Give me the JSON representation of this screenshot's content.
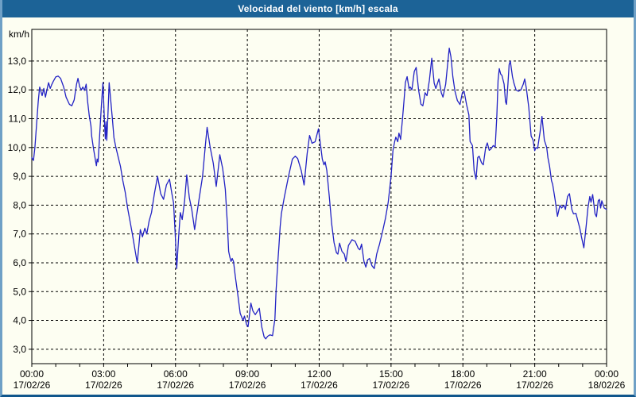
{
  "window": {
    "title": "Velocidad del viento [km/h] escala"
  },
  "colors": {
    "title_bar": "#1c6397",
    "border_sides": "#6fa0c6",
    "border_bottom": "#10568c",
    "background": "#fdfef2"
  },
  "chart_data": {
    "type": "line",
    "title": "Velocidad del viento [km/h] escala",
    "xlabel": "",
    "ylabel": "km/h",
    "xlim": [
      0,
      24
    ],
    "ylim": [
      2.5,
      14.1
    ],
    "grid": "dashed",
    "x_minor_step": 1,
    "line_color": "#2222c4",
    "grid_color": "#000000",
    "axis_color": "#000000",
    "y_ticks": [
      {
        "value": 13,
        "label": "13,0"
      },
      {
        "value": 12,
        "label": "12,0"
      },
      {
        "value": 11,
        "label": "11,0"
      },
      {
        "value": 10,
        "label": "10,0"
      },
      {
        "value": 9,
        "label": "9,0"
      },
      {
        "value": 8,
        "label": "8,0"
      },
      {
        "value": 7,
        "label": "7,0"
      },
      {
        "value": 6,
        "label": "6,0"
      },
      {
        "value": 5,
        "label": "5,0"
      },
      {
        "value": 4,
        "label": "4,0"
      },
      {
        "value": 3,
        "label": "3,0"
      }
    ],
    "x_ticks": [
      {
        "hour": 0,
        "time": "00:00",
        "date": "17/02/26"
      },
      {
        "hour": 3,
        "time": "03:00",
        "date": "17/02/26"
      },
      {
        "hour": 6,
        "time": "06:00",
        "date": "17/02/26"
      },
      {
        "hour": 9,
        "time": "09:00",
        "date": "17/02/26"
      },
      {
        "hour": 12,
        "time": "12:00",
        "date": "17/02/26"
      },
      {
        "hour": 15,
        "time": "15:00",
        "date": "17/02/26"
      },
      {
        "hour": 18,
        "time": "18:00",
        "date": "17/02/26"
      },
      {
        "hour": 21,
        "time": "21:00",
        "date": "17/02/26"
      },
      {
        "hour": 24,
        "time": "00:00",
        "date": "18/02/26"
      }
    ],
    "points": [
      [
        0.0,
        9.65
      ],
      [
        0.07,
        9.55
      ],
      [
        0.13,
        10.0
      ],
      [
        0.2,
        10.8
      ],
      [
        0.27,
        11.6
      ],
      [
        0.33,
        12.1
      ],
      [
        0.43,
        11.8
      ],
      [
        0.5,
        12.05
      ],
      [
        0.57,
        11.75
      ],
      [
        0.63,
        12.0
      ],
      [
        0.7,
        12.25
      ],
      [
        0.77,
        12.05
      ],
      [
        0.83,
        12.18
      ],
      [
        0.9,
        12.3
      ],
      [
        1.0,
        12.45
      ],
      [
        1.1,
        12.48
      ],
      [
        1.2,
        12.4
      ],
      [
        1.33,
        12.1
      ],
      [
        1.43,
        11.75
      ],
      [
        1.57,
        11.5
      ],
      [
        1.67,
        11.45
      ],
      [
        1.77,
        11.65
      ],
      [
        1.87,
        12.2
      ],
      [
        1.93,
        12.4
      ],
      [
        2.0,
        12.1
      ],
      [
        2.07,
        12.0
      ],
      [
        2.13,
        12.1
      ],
      [
        2.2,
        11.98
      ],
      [
        2.27,
        12.2
      ],
      [
        2.33,
        11.6
      ],
      [
        2.4,
        11.1
      ],
      [
        2.47,
        10.75
      ],
      [
        2.5,
        10.4
      ],
      [
        2.57,
        10.0
      ],
      [
        2.63,
        9.7
      ],
      [
        2.67,
        9.5
      ],
      [
        2.7,
        9.37
      ],
      [
        2.73,
        9.6
      ],
      [
        2.77,
        9.5
      ],
      [
        2.83,
        10.4
      ],
      [
        2.9,
        11.4
      ],
      [
        2.97,
        12.25
      ],
      [
        3.03,
        10.95
      ],
      [
        3.07,
        10.3
      ],
      [
        3.1,
        10.9
      ],
      [
        3.13,
        10.25
      ],
      [
        3.17,
        10.95
      ],
      [
        3.23,
        12.25
      ],
      [
        3.3,
        11.6
      ],
      [
        3.37,
        10.95
      ],
      [
        3.43,
        10.35
      ],
      [
        3.5,
        10.05
      ],
      [
        3.6,
        9.7
      ],
      [
        3.7,
        9.35
      ],
      [
        3.8,
        8.85
      ],
      [
        3.9,
        8.45
      ],
      [
        4.0,
        7.9
      ],
      [
        4.1,
        7.45
      ],
      [
        4.2,
        7.0
      ],
      [
        4.3,
        6.5
      ],
      [
        4.4,
        6.0
      ],
      [
        4.47,
        6.6
      ],
      [
        4.53,
        7.15
      ],
      [
        4.62,
        6.9
      ],
      [
        4.72,
        7.2
      ],
      [
        4.8,
        7.0
      ],
      [
        4.9,
        7.45
      ],
      [
        5.0,
        7.75
      ],
      [
        5.12,
        8.4
      ],
      [
        5.25,
        9.0
      ],
      [
        5.38,
        8.4
      ],
      [
        5.5,
        8.2
      ],
      [
        5.62,
        8.7
      ],
      [
        5.75,
        8.9
      ],
      [
        5.85,
        8.4
      ],
      [
        5.92,
        8.08
      ],
      [
        6.0,
        6.77
      ],
      [
        6.05,
        5.8
      ],
      [
        6.13,
        6.9
      ],
      [
        6.2,
        7.74
      ],
      [
        6.28,
        7.5
      ],
      [
        6.38,
        8.15
      ],
      [
        6.47,
        9.05
      ],
      [
        6.58,
        8.25
      ],
      [
        6.68,
        7.85
      ],
      [
        6.8,
        7.15
      ],
      [
        6.9,
        7.75
      ],
      [
        7.0,
        8.3
      ],
      [
        7.13,
        9.0
      ],
      [
        7.25,
        10.1
      ],
      [
        7.32,
        10.7
      ],
      [
        7.45,
        10.0
      ],
      [
        7.58,
        9.45
      ],
      [
        7.7,
        8.65
      ],
      [
        7.85,
        9.75
      ],
      [
        7.97,
        9.27
      ],
      [
        8.08,
        8.55
      ],
      [
        8.17,
        7.3
      ],
      [
        8.22,
        6.4
      ],
      [
        8.27,
        6.2
      ],
      [
        8.32,
        6.05
      ],
      [
        8.37,
        6.15
      ],
      [
        8.42,
        6.05
      ],
      [
        8.5,
        5.5
      ],
      [
        8.6,
        4.9
      ],
      [
        8.7,
        4.25
      ],
      [
        8.82,
        4.0
      ],
      [
        8.88,
        4.15
      ],
      [
        8.97,
        3.85
      ],
      [
        9.03,
        3.78
      ],
      [
        9.15,
        4.6
      ],
      [
        9.23,
        4.33
      ],
      [
        9.33,
        4.2
      ],
      [
        9.43,
        4.33
      ],
      [
        9.5,
        4.42
      ],
      [
        9.6,
        3.78
      ],
      [
        9.7,
        3.43
      ],
      [
        9.77,
        3.36
      ],
      [
        9.85,
        3.45
      ],
      [
        9.95,
        3.5
      ],
      [
        10.05,
        3.47
      ],
      [
        10.15,
        4.05
      ],
      [
        10.2,
        5.05
      ],
      [
        10.27,
        6.0
      ],
      [
        10.32,
        6.6
      ],
      [
        10.37,
        7.25
      ],
      [
        10.42,
        7.7
      ],
      [
        10.55,
        8.3
      ],
      [
        10.72,
        9.0
      ],
      [
        10.88,
        9.6
      ],
      [
        11.0,
        9.7
      ],
      [
        11.1,
        9.62
      ],
      [
        11.25,
        9.2
      ],
      [
        11.37,
        8.7
      ],
      [
        11.5,
        9.8
      ],
      [
        11.6,
        10.42
      ],
      [
        11.7,
        10.15
      ],
      [
        11.83,
        10.2
      ],
      [
        11.97,
        10.65
      ],
      [
        12.07,
        10.0
      ],
      [
        12.13,
        9.6
      ],
      [
        12.2,
        9.4
      ],
      [
        12.25,
        9.5
      ],
      [
        12.32,
        9.2
      ],
      [
        12.42,
        8.3
      ],
      [
        12.52,
        7.35
      ],
      [
        12.62,
        6.7
      ],
      [
        12.72,
        6.35
      ],
      [
        12.78,
        6.3
      ],
      [
        12.85,
        6.68
      ],
      [
        12.95,
        6.4
      ],
      [
        13.05,
        6.3
      ],
      [
        13.12,
        6.05
      ],
      [
        13.22,
        6.6
      ],
      [
        13.37,
        6.8
      ],
      [
        13.5,
        6.75
      ],
      [
        13.63,
        6.5
      ],
      [
        13.7,
        6.45
      ],
      [
        13.77,
        6.65
      ],
      [
        13.87,
        6.05
      ],
      [
        13.95,
        5.85
      ],
      [
        14.02,
        6.1
      ],
      [
        14.1,
        6.15
      ],
      [
        14.2,
        5.9
      ],
      [
        14.3,
        5.8
      ],
      [
        14.4,
        6.3
      ],
      [
        14.52,
        6.65
      ],
      [
        14.65,
        7.1
      ],
      [
        14.77,
        7.55
      ],
      [
        14.88,
        8.1
      ],
      [
        15.0,
        9.0
      ],
      [
        15.08,
        9.9
      ],
      [
        15.15,
        10.2
      ],
      [
        15.2,
        10.36
      ],
      [
        15.28,
        10.2
      ],
      [
        15.33,
        10.5
      ],
      [
        15.4,
        10.28
      ],
      [
        15.48,
        11.0
      ],
      [
        15.55,
        11.7
      ],
      [
        15.6,
        12.25
      ],
      [
        15.67,
        12.46
      ],
      [
        15.75,
        12.05
      ],
      [
        15.8,
        12.1
      ],
      [
        15.87,
        12.0
      ],
      [
        15.97,
        12.64
      ],
      [
        16.05,
        12.78
      ],
      [
        16.15,
        12.0
      ],
      [
        16.25,
        11.5
      ],
      [
        16.33,
        11.45
      ],
      [
        16.42,
        11.9
      ],
      [
        16.5,
        11.8
      ],
      [
        16.6,
        12.33
      ],
      [
        16.7,
        13.1
      ],
      [
        16.8,
        12.24
      ],
      [
        16.87,
        12.05
      ],
      [
        17.0,
        12.38
      ],
      [
        17.1,
        11.9
      ],
      [
        17.17,
        11.75
      ],
      [
        17.28,
        12.2
      ],
      [
        17.37,
        12.96
      ],
      [
        17.43,
        13.45
      ],
      [
        17.5,
        13.15
      ],
      [
        17.58,
        12.46
      ],
      [
        17.67,
        11.95
      ],
      [
        17.77,
        11.63
      ],
      [
        17.88,
        11.49
      ],
      [
        17.98,
        11.9
      ],
      [
        18.05,
        11.95
      ],
      [
        18.15,
        11.5
      ],
      [
        18.25,
        11.13
      ],
      [
        18.3,
        10.21
      ],
      [
        18.4,
        10.07
      ],
      [
        18.47,
        9.2
      ],
      [
        18.55,
        8.9
      ],
      [
        18.62,
        9.65
      ],
      [
        18.68,
        9.7
      ],
      [
        18.78,
        9.47
      ],
      [
        18.85,
        9.4
      ],
      [
        18.95,
        10.0
      ],
      [
        19.02,
        10.16
      ],
      [
        19.1,
        9.9
      ],
      [
        19.17,
        9.95
      ],
      [
        19.27,
        10.07
      ],
      [
        19.35,
        10.02
      ],
      [
        19.42,
        11.13
      ],
      [
        19.47,
        12.33
      ],
      [
        19.52,
        12.74
      ],
      [
        19.58,
        12.55
      ],
      [
        19.63,
        12.5
      ],
      [
        19.72,
        12.2
      ],
      [
        19.78,
        11.59
      ],
      [
        19.82,
        11.5
      ],
      [
        19.88,
        12.2
      ],
      [
        19.93,
        12.87
      ],
      [
        19.98,
        13.0
      ],
      [
        20.07,
        12.46
      ],
      [
        20.13,
        12.24
      ],
      [
        20.22,
        12.0
      ],
      [
        20.32,
        11.95
      ],
      [
        20.42,
        12.0
      ],
      [
        20.52,
        12.2
      ],
      [
        20.58,
        12.38
      ],
      [
        20.65,
        12.05
      ],
      [
        20.75,
        11.4
      ],
      [
        20.85,
        10.4
      ],
      [
        20.93,
        10.26
      ],
      [
        21.0,
        9.89
      ],
      [
        21.05,
        10.0
      ],
      [
        21.12,
        9.97
      ],
      [
        21.22,
        10.53
      ],
      [
        21.3,
        11.08
      ],
      [
        21.4,
        10.26
      ],
      [
        21.5,
        10.0
      ],
      [
        21.55,
        9.65
      ],
      [
        21.62,
        9.35
      ],
      [
        21.7,
        8.85
      ],
      [
        21.75,
        8.72
      ],
      [
        21.85,
        8.2
      ],
      [
        21.95,
        7.61
      ],
      [
        22.05,
        8.0
      ],
      [
        22.12,
        7.9
      ],
      [
        22.22,
        8.0
      ],
      [
        22.28,
        7.85
      ],
      [
        22.37,
        8.3
      ],
      [
        22.45,
        8.4
      ],
      [
        22.55,
        7.85
      ],
      [
        22.62,
        7.7
      ],
      [
        22.72,
        7.72
      ],
      [
        22.8,
        7.45
      ],
      [
        22.88,
        7.2
      ],
      [
        22.95,
        6.9
      ],
      [
        23.05,
        6.52
      ],
      [
        23.15,
        7.3
      ],
      [
        23.22,
        7.9
      ],
      [
        23.3,
        8.3
      ],
      [
        23.35,
        8.1
      ],
      [
        23.42,
        8.37
      ],
      [
        23.52,
        7.7
      ],
      [
        23.58,
        7.6
      ],
      [
        23.65,
        8.15
      ],
      [
        23.7,
        8.2
      ],
      [
        23.75,
        7.9
      ],
      [
        23.8,
        8.15
      ],
      [
        23.9,
        7.9
      ],
      [
        24.0,
        7.85
      ]
    ]
  }
}
